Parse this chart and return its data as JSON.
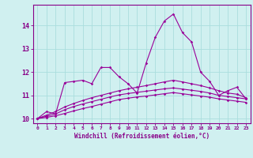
{
  "x": [
    0,
    1,
    2,
    3,
    4,
    5,
    6,
    7,
    8,
    9,
    10,
    11,
    12,
    13,
    14,
    15,
    16,
    17,
    18,
    19,
    20,
    21,
    22,
    23
  ],
  "line1": [
    10.0,
    10.3,
    10.2,
    11.55,
    11.6,
    11.65,
    11.5,
    12.2,
    12.2,
    11.8,
    11.5,
    11.1,
    12.4,
    13.5,
    14.2,
    14.5,
    13.7,
    13.3,
    12.0,
    11.6,
    11.0,
    11.2,
    11.35,
    10.85
  ],
  "line2": [
    10.0,
    10.15,
    10.3,
    10.5,
    10.65,
    10.78,
    10.9,
    11.0,
    11.1,
    11.2,
    11.28,
    11.35,
    11.42,
    11.5,
    11.58,
    11.65,
    11.58,
    11.5,
    11.42,
    11.32,
    11.2,
    11.1,
    11.05,
    10.9
  ],
  "line3": [
    10.0,
    10.1,
    10.2,
    10.38,
    10.52,
    10.63,
    10.73,
    10.83,
    10.93,
    11.02,
    11.08,
    11.13,
    11.18,
    11.23,
    11.28,
    11.32,
    11.27,
    11.22,
    11.17,
    11.1,
    11.0,
    10.95,
    10.9,
    10.85
  ],
  "line4": [
    10.0,
    10.05,
    10.12,
    10.22,
    10.33,
    10.43,
    10.52,
    10.62,
    10.72,
    10.82,
    10.88,
    10.93,
    10.97,
    11.02,
    11.07,
    11.12,
    11.07,
    11.02,
    10.97,
    10.92,
    10.85,
    10.8,
    10.75,
    10.7
  ],
  "line_color": "#990099",
  "bg_color": "#d0f0f0",
  "grid_color": "#aadddd",
  "axis_color": "#880088",
  "xlabel": "Windchill (Refroidissement éolien,°C)",
  "ylim": [
    9.8,
    14.9
  ],
  "xlim": [
    -0.5,
    23.5
  ],
  "yticks": [
    10,
    11,
    12,
    13,
    14
  ],
  "xticks": [
    0,
    1,
    2,
    3,
    4,
    5,
    6,
    7,
    8,
    9,
    10,
    11,
    12,
    13,
    14,
    15,
    16,
    17,
    18,
    19,
    20,
    21,
    22,
    23
  ]
}
